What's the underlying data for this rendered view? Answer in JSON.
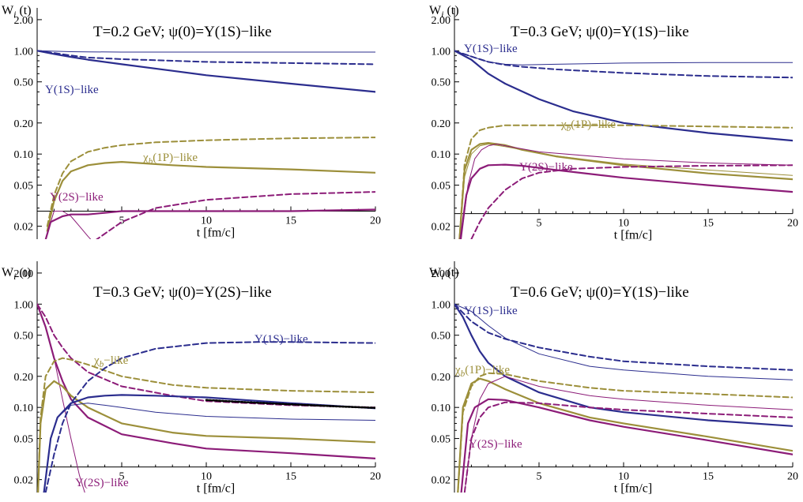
{
  "chart_data": [
    {
      "type": "line",
      "title": "T=0.2 GeV; ψ(0)=Υ(1S)−like",
      "ylabel": "W_i (t)",
      "xlabel": "t [fm/c]",
      "y_scale": "log",
      "ylim": [
        0.015,
        2.6
      ],
      "xlim": [
        0,
        20
      ],
      "x_axis_crossing_y": 0.028,
      "xticks": [
        5,
        10,
        15,
        20
      ],
      "yticks": [
        0.02,
        0.05,
        0.1,
        0.2,
        0.5,
        1.0,
        2.0
      ],
      "ytick_labels": [
        "0.02",
        "0.05",
        "0.10",
        "0.20",
        "0.50",
        "1.00",
        "2.00"
      ],
      "annotations": [
        {
          "text": "Υ(1S)−like",
          "color": "#2b2d8e"
        },
        {
          "text": "χ_b(1P)−like",
          "color": "#9c8f3a"
        },
        {
          "text": "Υ(2S)−like",
          "color": "#8c1c78"
        }
      ],
      "series": [
        {
          "color": "#2b2d8e",
          "style": "thin",
          "x": [
            0,
            1,
            2,
            3,
            5,
            10,
            15,
            20
          ],
          "y": [
            1.0,
            0.99,
            0.98,
            0.975,
            0.97,
            0.97,
            0.97,
            0.97
          ]
        },
        {
          "color": "#2b2d8e",
          "style": "dashed",
          "x": [
            0,
            1,
            2,
            3,
            5,
            8,
            10,
            15,
            20
          ],
          "y": [
            1.0,
            0.95,
            0.9,
            0.86,
            0.83,
            0.8,
            0.78,
            0.76,
            0.74
          ]
        },
        {
          "color": "#2b2d8e",
          "style": "solid",
          "x": [
            0,
            1,
            2,
            3,
            5,
            8,
            10,
            15,
            20
          ],
          "y": [
            1.0,
            0.93,
            0.87,
            0.82,
            0.74,
            0.64,
            0.58,
            0.48,
            0.4
          ]
        },
        {
          "color": "#9c8f3a",
          "style": "dashed",
          "x": [
            0.6,
            1,
            1.5,
            2,
            3,
            4,
            5,
            7,
            10,
            15,
            20
          ],
          "y": [
            0.02,
            0.04,
            0.065,
            0.085,
            0.105,
            0.115,
            0.122,
            0.13,
            0.136,
            0.142,
            0.145
          ]
        },
        {
          "color": "#9c8f3a",
          "style": "solid",
          "x": [
            0.6,
            1,
            1.5,
            2,
            3,
            4,
            5,
            6,
            8,
            10,
            15,
            20
          ],
          "y": [
            0.018,
            0.035,
            0.055,
            0.068,
            0.078,
            0.082,
            0.084,
            0.082,
            0.078,
            0.075,
            0.071,
            0.066
          ]
        },
        {
          "color": "#8c1c78",
          "style": "dashed",
          "x": [
            3,
            5,
            7,
            10,
            15,
            20
          ],
          "y": [
            0.013,
            0.022,
            0.03,
            0.036,
            0.041,
            0.043
          ]
        },
        {
          "color": "#8c1c78",
          "style": "solid",
          "x": [
            0.4,
            0.8,
            1.5,
            2,
            3,
            4,
            5,
            7,
            10,
            15,
            20
          ],
          "y": [
            0.013,
            0.022,
            0.025,
            0.026,
            0.026,
            0.027,
            0.028,
            0.028,
            0.028,
            0.028,
            0.029
          ]
        },
        {
          "color": "#8c1c78",
          "style": "thin",
          "x": [
            0.1,
            0.5,
            1,
            1.5,
            2,
            2.5,
            3,
            3.5
          ],
          "y": [
            0.002,
            0.015,
            0.028,
            0.028,
            0.025,
            0.02,
            0.016,
            0.013
          ]
        }
      ]
    },
    {
      "type": "line",
      "title": "T=0.3 GeV; ψ(0)=Υ(1S)−like",
      "ylabel": "W_i (t)",
      "xlabel": "t [fm/c]",
      "y_scale": "log",
      "ylim": [
        0.015,
        2.6
      ],
      "xlim": [
        0,
        20
      ],
      "x_axis_crossing_y": 0.0265,
      "xticks": [
        5,
        10,
        15,
        20
      ],
      "yticks": [
        0.02,
        0.05,
        0.1,
        0.2,
        0.5,
        1.0,
        2.0
      ],
      "ytick_labels": [
        "0.02",
        "0.05",
        "0.10",
        "0.20",
        "0.50",
        "1.00",
        "2.00"
      ],
      "annotations": [
        {
          "text": "Υ(1S)−like",
          "color": "#2b2d8e"
        },
        {
          "text": "χ_b(1P)−like",
          "color": "#9c8f3a"
        },
        {
          "text": "Υ(2S)−like",
          "color": "#8c1c78"
        }
      ],
      "series": [
        {
          "color": "#2b2d8e",
          "style": "thin",
          "x": [
            0,
            1,
            2,
            3,
            4,
            6,
            10,
            15,
            20
          ],
          "y": [
            1.0,
            0.88,
            0.78,
            0.74,
            0.73,
            0.74,
            0.76,
            0.77,
            0.77
          ]
        },
        {
          "color": "#2b2d8e",
          "style": "dashed",
          "x": [
            0,
            1,
            2,
            3,
            4,
            6,
            10,
            15,
            20
          ],
          "y": [
            1.0,
            0.88,
            0.78,
            0.73,
            0.7,
            0.66,
            0.61,
            0.57,
            0.55
          ]
        },
        {
          "color": "#2b2d8e",
          "style": "solid",
          "x": [
            0,
            1,
            2,
            3,
            5,
            7,
            10,
            15,
            20
          ],
          "y": [
            1.0,
            0.82,
            0.6,
            0.48,
            0.34,
            0.26,
            0.2,
            0.16,
            0.135
          ]
        },
        {
          "color": "#9c8f3a",
          "style": "dashed",
          "x": [
            0.3,
            0.6,
            1,
            1.5,
            2,
            3,
            4,
            6,
            10,
            15,
            20
          ],
          "y": [
            0.015,
            0.08,
            0.14,
            0.17,
            0.18,
            0.19,
            0.19,
            0.19,
            0.19,
            0.185,
            0.18
          ]
        },
        {
          "color": "#9c8f3a",
          "style": "solid",
          "x": [
            0.3,
            0.6,
            1,
            1.5,
            2,
            3,
            4,
            6,
            10,
            15,
            20
          ],
          "y": [
            0.015,
            0.07,
            0.11,
            0.125,
            0.128,
            0.122,
            0.11,
            0.095,
            0.078,
            0.065,
            0.057
          ]
        },
        {
          "color": "#9c8f3a",
          "style": "thin",
          "x": [
            0.3,
            0.6,
            1,
            1.5,
            2,
            3,
            4,
            6,
            10,
            15,
            20
          ],
          "y": [
            0.015,
            0.06,
            0.1,
            0.12,
            0.125,
            0.118,
            0.11,
            0.096,
            0.08,
            0.07,
            0.062
          ]
        },
        {
          "color": "#8c1c78",
          "style": "thin",
          "x": [
            0.4,
            0.8,
            1.2,
            1.6,
            2,
            2.5,
            3,
            5,
            10,
            15,
            20
          ],
          "y": [
            0.015,
            0.05,
            0.09,
            0.11,
            0.12,
            0.125,
            0.12,
            0.105,
            0.09,
            0.082,
            0.078
          ]
        },
        {
          "color": "#8c1c78",
          "style": "solid",
          "x": [
            0.35,
            0.7,
            1,
            1.5,
            2,
            3,
            4,
            6,
            10,
            15,
            20
          ],
          "y": [
            0.015,
            0.04,
            0.058,
            0.072,
            0.078,
            0.079,
            0.077,
            0.07,
            0.059,
            0.05,
            0.043
          ]
        },
        {
          "color": "#8c1c78",
          "style": "dashed",
          "x": [
            1,
            1.5,
            2,
            3,
            4,
            5,
            7,
            10,
            15,
            20
          ],
          "y": [
            0.015,
            0.022,
            0.03,
            0.045,
            0.058,
            0.066,
            0.072,
            0.075,
            0.077,
            0.078
          ]
        }
      ]
    },
    {
      "type": "line",
      "title": "T=0.3 GeV; ψ(0)=Υ(2S)−like",
      "ylabel": "W_i (t)",
      "xlabel": "t [fm/c]",
      "y_scale": "log",
      "ylim": [
        0.015,
        2.6
      ],
      "xlim": [
        0,
        20
      ],
      "x_axis_crossing_y": 0.0265,
      "xticks": [
        5,
        10,
        15,
        20
      ],
      "yticks": [
        0.02,
        0.05,
        0.1,
        0.2,
        0.5,
        1.0,
        2.0
      ],
      "ytick_labels": [
        "0.02",
        "0.05",
        "0.10",
        "0.20",
        "0.50",
        "1.00",
        "2.00"
      ],
      "annotations": [
        {
          "text": "Υ(1S)−like",
          "color": "#2b2d8e"
        },
        {
          "text": "χ_b−like",
          "color": "#9c8f3a"
        },
        {
          "text": "Υ(2S)−like",
          "color": "#8c1c78"
        }
      ],
      "series": [
        {
          "color": "#8c1c78",
          "style": "thin",
          "x": [
            0,
            0.5,
            1,
            1.5,
            2,
            2.5,
            3
          ],
          "y": [
            1.0,
            0.6,
            0.3,
            0.12,
            0.05,
            0.022,
            0.012
          ]
        },
        {
          "color": "#8c1c78",
          "style": "dashed",
          "x": [
            0,
            0.5,
            1,
            1.5,
            2,
            3,
            5,
            8,
            10,
            15,
            20
          ],
          "y": [
            1.0,
            0.75,
            0.5,
            0.38,
            0.3,
            0.22,
            0.16,
            0.13,
            0.115,
            0.105,
            0.1
          ]
        },
        {
          "color": "#8c1c78",
          "style": "solid",
          "x": [
            0,
            0.5,
            1,
            1.5,
            2,
            3,
            5,
            8,
            10,
            15,
            20
          ],
          "y": [
            1.0,
            0.6,
            0.3,
            0.18,
            0.12,
            0.08,
            0.055,
            0.045,
            0.04,
            0.036,
            0.032
          ]
        },
        {
          "color": "#9c8f3a",
          "style": "dashed",
          "x": [
            0.05,
            0.2,
            0.5,
            1,
            1.5,
            2,
            3,
            5,
            8,
            10,
            15,
            20
          ],
          "y": [
            0.015,
            0.08,
            0.2,
            0.28,
            0.3,
            0.29,
            0.26,
            0.2,
            0.165,
            0.155,
            0.145,
            0.14
          ]
        },
        {
          "color": "#9c8f3a",
          "style": "solid",
          "x": [
            0.05,
            0.2,
            0.5,
            1,
            1.5,
            2,
            3,
            5,
            8,
            10,
            15,
            20
          ],
          "y": [
            0.015,
            0.07,
            0.15,
            0.18,
            0.16,
            0.13,
            0.1,
            0.07,
            0.057,
            0.053,
            0.05,
            0.046
          ]
        },
        {
          "color": "#2b2d8e",
          "style": "dashed",
          "x": [
            0.5,
            1,
            1.5,
            2,
            3,
            4,
            5,
            7,
            10,
            13,
            15,
            20
          ],
          "y": [
            0.015,
            0.035,
            0.07,
            0.11,
            0.18,
            0.24,
            0.3,
            0.37,
            0.42,
            0.43,
            0.43,
            0.42
          ]
        },
        {
          "color": "#2b2d8e",
          "style": "solid",
          "x": [
            0.4,
            0.8,
            1.2,
            2,
            3,
            4,
            5,
            7,
            10,
            15,
            20
          ],
          "y": [
            0.015,
            0.05,
            0.08,
            0.11,
            0.125,
            0.13,
            0.132,
            0.13,
            0.125,
            0.11,
            0.098
          ]
        },
        {
          "color": "#2b2d8e",
          "style": "thin",
          "x": [
            0.4,
            0.8,
            1.2,
            2,
            3,
            4,
            5,
            7,
            10,
            15,
            20
          ],
          "y": [
            0.015,
            0.05,
            0.08,
            0.105,
            0.11,
            0.105,
            0.1,
            0.09,
            0.082,
            0.077,
            0.075
          ]
        },
        {
          "color": "#000000",
          "style": "dotted",
          "x": [
            10,
            12,
            15,
            18,
            20
          ],
          "y": [
            0.118,
            0.113,
            0.107,
            0.102,
            0.099
          ]
        }
      ]
    },
    {
      "type": "line",
      "title": "T=0.6 GeV; ψ(0)=Υ(1S)−like",
      "ylabel": "W_i (t)",
      "xlabel": "t [fm/c]",
      "y_scale": "log",
      "ylim": [
        0.015,
        2.6
      ],
      "xlim": [
        0,
        20
      ],
      "x_axis_crossing_y": 0.0265,
      "xticks": [
        5,
        10,
        15,
        20
      ],
      "yticks": [
        0.02,
        0.05,
        0.1,
        0.2,
        0.5,
        1.0,
        2.0
      ],
      "ytick_labels": [
        "0.02",
        "0.05",
        "0.10",
        "0.20",
        "0.50",
        "1.00",
        "2.00"
      ],
      "annotations": [
        {
          "text": "Υ(1S)−like",
          "color": "#2b2d8e"
        },
        {
          "text": "χ_b(1P)−like",
          "color": "#9c8f3a"
        },
        {
          "text": "Υ(2S)−like",
          "color": "#8c1c78"
        }
      ],
      "series": [
        {
          "color": "#2b2d8e",
          "style": "thin",
          "x": [
            0,
            1,
            2,
            3,
            5,
            8,
            10,
            15,
            20
          ],
          "y": [
            1.0,
            0.85,
            0.62,
            0.47,
            0.33,
            0.25,
            0.23,
            0.2,
            0.185
          ]
        },
        {
          "color": "#2b2d8e",
          "style": "dashed",
          "x": [
            0,
            1,
            2,
            3,
            5,
            8,
            10,
            15,
            20
          ],
          "y": [
            1.0,
            0.68,
            0.53,
            0.46,
            0.38,
            0.31,
            0.28,
            0.25,
            0.23
          ]
        },
        {
          "color": "#2b2d8e",
          "style": "solid",
          "x": [
            0,
            0.5,
            1,
            1.5,
            2,
            3,
            5,
            8,
            10,
            15,
            20
          ],
          "y": [
            1.0,
            0.75,
            0.5,
            0.35,
            0.27,
            0.2,
            0.14,
            0.1,
            0.09,
            0.075,
            0.066
          ]
        },
        {
          "color": "#9c8f3a",
          "style": "dashed",
          "x": [
            0.2,
            0.5,
            1,
            1.5,
            2,
            3,
            5,
            8,
            10,
            15,
            20
          ],
          "y": [
            0.015,
            0.09,
            0.16,
            0.2,
            0.215,
            0.21,
            0.18,
            0.155,
            0.145,
            0.135,
            0.125
          ]
        },
        {
          "color": "#9c8f3a",
          "style": "solid",
          "x": [
            0.2,
            0.5,
            1,
            1.5,
            2,
            3,
            5,
            8,
            10,
            15,
            20
          ],
          "y": [
            0.015,
            0.1,
            0.17,
            0.19,
            0.18,
            0.15,
            0.11,
            0.08,
            0.07,
            0.052,
            0.038
          ]
        },
        {
          "color": "#8c1c78",
          "style": "thin",
          "x": [
            0.6,
            1,
            1.5,
            2,
            3,
            5,
            8,
            10,
            15,
            20
          ],
          "y": [
            0.015,
            0.05,
            0.12,
            0.17,
            0.2,
            0.16,
            0.13,
            0.12,
            0.105,
            0.095
          ]
        },
        {
          "color": "#8c1c78",
          "style": "solid",
          "x": [
            0.4,
            0.8,
            1.2,
            2,
            3,
            5,
            8,
            10,
            15,
            20
          ],
          "y": [
            0.015,
            0.07,
            0.1,
            0.12,
            0.118,
            0.1,
            0.075,
            0.065,
            0.048,
            0.035
          ]
        },
        {
          "color": "#8c1c78",
          "style": "dashed",
          "x": [
            0.6,
            1,
            1.5,
            2,
            3,
            5,
            8,
            10,
            15,
            20
          ],
          "y": [
            0.015,
            0.05,
            0.08,
            0.1,
            0.112,
            0.11,
            0.1,
            0.095,
            0.087,
            0.08
          ]
        }
      ]
    }
  ]
}
